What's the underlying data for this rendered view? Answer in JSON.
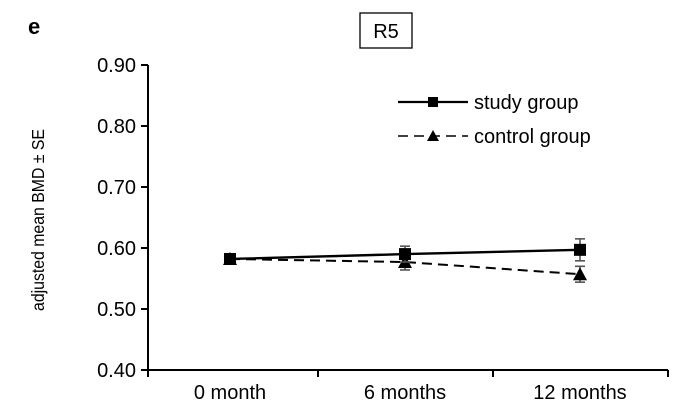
{
  "panel_letter": "e",
  "chart_data": {
    "type": "line",
    "title": "R5",
    "xlabel": "",
    "ylabel": "adjusted mean BMD ± SE",
    "categories": [
      "0 month",
      "6 months",
      "12 months"
    ],
    "ylim": [
      0.4,
      0.9
    ],
    "yticks": [
      "0.40",
      "0.50",
      "0.60",
      "0.70",
      "0.80",
      "0.90"
    ],
    "grid": false,
    "legend_position": "top-right",
    "series": [
      {
        "name": "study group",
        "values": [
          0.582,
          0.59,
          0.597
        ],
        "errors": [
          0.005,
          0.013,
          0.018
        ],
        "line_style": "solid",
        "marker": "square",
        "color": "#000000"
      },
      {
        "name": "control group",
        "values": [
          0.582,
          0.577,
          0.557
        ],
        "errors": [
          0.005,
          0.013,
          0.013
        ],
        "line_style": "dashed",
        "marker": "triangle",
        "color": "#000000"
      }
    ]
  }
}
